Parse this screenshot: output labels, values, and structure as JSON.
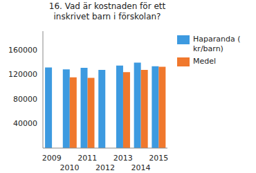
{
  "chart_data": {
    "type": "bar",
    "title": "16. Vad är kostnaden för ett inskrivet barn i förskolan?",
    "categories": [
      "2009",
      "2010",
      "2011",
      "2012",
      "2013",
      "2014",
      "2015"
    ],
    "series": [
      {
        "name": "Haparanda ( kr/barn)",
        "color": "#3d9ae0",
        "values": [
          131000,
          128000,
          130500,
          127000,
          134000,
          138800,
          133000
        ]
      },
      {
        "name": "Medel",
        "color": "#f0782d",
        "values": [
          null,
          115000,
          114000,
          null,
          123500,
          127000,
          132000
        ]
      }
    ],
    "ylim": [
      0,
      190000
    ],
    "yticks": [
      40000,
      80000,
      120000,
      160000
    ],
    "grid": false,
    "legend": "right"
  }
}
